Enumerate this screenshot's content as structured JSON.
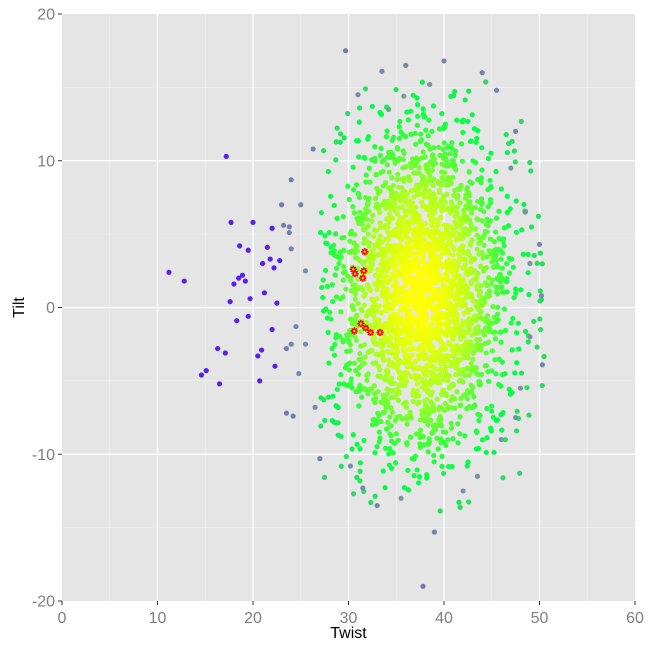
{
  "chart_data": {
    "type": "scatter",
    "title": "",
    "xlabel": "Twist",
    "ylabel": "Tilt",
    "xlim": [
      0,
      60
    ],
    "ylim": [
      -20,
      20
    ],
    "x_ticks": [
      0,
      10,
      20,
      30,
      40,
      50,
      60
    ],
    "y_ticks": [
      -20,
      -10,
      0,
      10,
      20
    ],
    "x_tick_labels": [
      "0",
      "10",
      "20",
      "30",
      "40",
      "50",
      "60"
    ],
    "y_tick_labels": [
      "-20",
      "-10",
      "0",
      "10",
      "20"
    ],
    "grid": true,
    "legend": "none",
    "colors": {
      "panel": "#e5e5e5",
      "dense_center": "#ffff00",
      "mid_density": "#00ff44",
      "sparse": "#7a9a9a",
      "outlier": "#5522ee",
      "highlight": "#ff0000",
      "highlight_fill": "#ffff00"
    },
    "series": [
      {
        "marker": "dot",
        "points": [
          [
            29.7,
            17.5
          ],
          [
            31.0,
            14.5
          ],
          [
            33.5,
            16.1
          ],
          [
            34.2,
            13.5
          ],
          [
            35.8,
            14.4
          ],
          [
            36.0,
            16.5
          ],
          [
            38.5,
            15.2
          ],
          [
            40.0,
            16.8
          ],
          [
            44.0,
            16.0
          ],
          [
            45.5,
            14.8
          ],
          [
            47.5,
            12.0
          ],
          [
            47.0,
            9.5
          ],
          [
            48.5,
            6.5
          ],
          [
            49.0,
            3.0
          ],
          [
            50.0,
            4.3
          ],
          [
            50.2,
            0.8
          ],
          [
            50.3,
            -3.9
          ],
          [
            49.0,
            -2.0
          ],
          [
            48.0,
            -5.5
          ],
          [
            47.5,
            -7.5
          ],
          [
            46.0,
            -9.0
          ],
          [
            43.5,
            -11.5
          ],
          [
            42.0,
            -12.5
          ],
          [
            39.0,
            -15.3
          ],
          [
            37.8,
            -19.0
          ],
          [
            35.5,
            -13.0
          ],
          [
            33.0,
            -13.5
          ],
          [
            31.5,
            -12.3
          ],
          [
            30.2,
            -10.8
          ],
          [
            27.0,
            -10.3
          ],
          [
            26.5,
            -6.8
          ],
          [
            25.5,
            -2.5
          ],
          [
            25.5,
            2.5
          ],
          [
            25.0,
            7.0
          ],
          [
            26.3,
            10.8
          ],
          [
            24.0,
            8.7
          ],
          [
            23.8,
            5.5
          ],
          [
            24.0,
            -2.5
          ],
          [
            11.2,
            2.4
          ],
          [
            12.8,
            1.8
          ],
          [
            14.6,
            -4.6
          ],
          [
            15.1,
            -4.3
          ],
          [
            16.5,
            -5.2
          ],
          [
            16.3,
            -2.8
          ],
          [
            17.1,
            -3.1
          ],
          [
            17.2,
            10.3
          ],
          [
            17.7,
            5.8
          ],
          [
            18.0,
            1.6
          ],
          [
            17.6,
            0.4
          ],
          [
            18.3,
            -0.9
          ],
          [
            18.5,
            2.0
          ],
          [
            18.6,
            4.2
          ],
          [
            18.9,
            2.2
          ],
          [
            19.2,
            1.8
          ],
          [
            19.5,
            -0.6
          ],
          [
            19.7,
            0.6
          ],
          [
            19.5,
            3.9
          ],
          [
            20.0,
            5.8
          ],
          [
            20.5,
            -3.3
          ],
          [
            20.7,
            -5.0
          ],
          [
            20.9,
            -2.9
          ],
          [
            21.2,
            1.0
          ],
          [
            21.0,
            3.0
          ],
          [
            21.5,
            4.1
          ],
          [
            21.8,
            3.3
          ],
          [
            22.2,
            2.7
          ],
          [
            22.0,
            5.4
          ],
          [
            22.8,
            3.2
          ],
          [
            23.0,
            7.0
          ],
          [
            23.2,
            5.6
          ],
          [
            23.8,
            5.1
          ],
          [
            23.5,
            -7.2
          ],
          [
            24.0,
            4.0
          ],
          [
            22.5,
            0.3
          ],
          [
            22.0,
            -1.5
          ],
          [
            22.3,
            -4.0
          ],
          [
            23.5,
            -2.8
          ],
          [
            24.2,
            -7.4
          ],
          [
            24.5,
            -1.3
          ],
          [
            24.8,
            -4.5
          ]
        ]
      },
      {
        "marker": "star",
        "points": [
          [
            30.5,
            2.6
          ],
          [
            30.7,
            2.3
          ],
          [
            31.6,
            2.5
          ],
          [
            31.7,
            3.8
          ],
          [
            31.5,
            2.0
          ],
          [
            31.3,
            -1.1
          ],
          [
            31.8,
            -1.4
          ],
          [
            30.6,
            -1.6
          ],
          [
            32.3,
            -1.7
          ],
          [
            33.3,
            -1.7
          ]
        ]
      }
    ]
  }
}
